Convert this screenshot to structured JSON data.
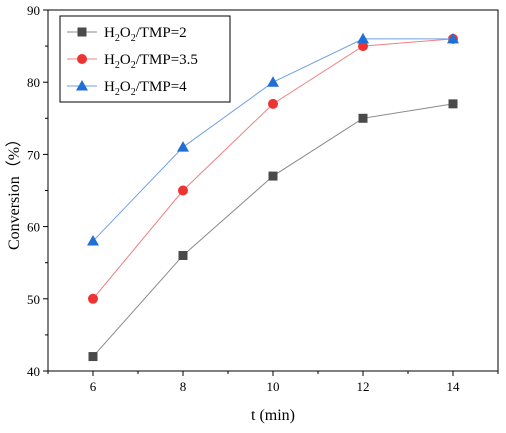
{
  "chart_data": {
    "type": "line",
    "x": [
      6,
      8,
      10,
      12,
      14
    ],
    "xlabel": "t (min)",
    "ylabel": "Conversion（%）",
    "xlim": [
      5,
      15
    ],
    "ylim": [
      40,
      90
    ],
    "xticks": [
      6,
      8,
      10,
      12,
      14
    ],
    "yticks": [
      40,
      50,
      60,
      70,
      80,
      90
    ],
    "grid": false,
    "legend_position": "top-left",
    "series": [
      {
        "name_parts": [
          "H",
          "2",
          "O",
          "2",
          "/TMP=2"
        ],
        "values": [
          42,
          56,
          67,
          75,
          77
        ],
        "marker": "square",
        "marker_color": "#4a4a4a",
        "line_color": "#8a8a8a"
      },
      {
        "name_parts": [
          "H",
          "2",
          "O",
          "2",
          "/TMP=3.5"
        ],
        "values": [
          50,
          65,
          77,
          85,
          86
        ],
        "marker": "circle",
        "marker_color": "#ee3333",
        "line_color": "#f08080"
      },
      {
        "name_parts": [
          "H",
          "2",
          "O",
          "2",
          "/TMP=4"
        ],
        "values": [
          58,
          71,
          80,
          86,
          86
        ],
        "marker": "triangle",
        "marker_color": "#1f6fd6",
        "line_color": "#6fa0e6"
      }
    ]
  }
}
